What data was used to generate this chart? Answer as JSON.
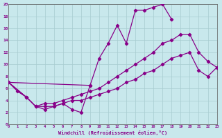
{
  "background_color": "#c8e8ec",
  "grid_color": "#a8ccd0",
  "line_color": "#880088",
  "xlabel": "Windchill (Refroidissement éolien,°C)",
  "xlim": [
    0,
    23
  ],
  "ylim": [
    0,
    20
  ],
  "curve_upper_x": [
    0,
    9,
    10,
    11,
    12,
    13,
    14,
    15,
    16,
    17,
    18
  ],
  "curve_upper_y": [
    7,
    6.5,
    11,
    13.5,
    16.5,
    13.5,
    19.0,
    19.0,
    19.5,
    20.0,
    17.5
  ],
  "curve_lower_x": [
    0,
    1,
    2,
    3,
    4,
    5,
    6,
    7,
    8,
    9
  ],
  "curve_lower_y": [
    7,
    5.5,
    4.5,
    3.0,
    2.5,
    3.0,
    3.5,
    2.5,
    2.0,
    6.5
  ],
  "curve_diag_up_x": [
    0,
    2,
    3,
    4,
    5,
    6,
    7,
    8,
    9,
    10,
    11,
    12,
    13,
    14,
    15,
    16,
    17,
    18,
    19,
    20,
    21,
    22,
    23
  ],
  "curve_diag_up_y": [
    7,
    4.5,
    3.0,
    3.5,
    3.5,
    4.0,
    4.5,
    5.0,
    5.5,
    6.0,
    7.0,
    8.0,
    9.0,
    10.0,
    11.0,
    12.0,
    13.5,
    14.0,
    15.0,
    15.0,
    12.0,
    10.5,
    9.5
  ],
  "curve_diag_low_x": [
    0,
    2,
    3,
    4,
    5,
    6,
    7,
    8,
    9,
    10,
    11,
    12,
    13,
    14,
    15,
    16,
    17,
    18,
    19,
    20,
    21,
    22,
    23
  ],
  "curve_diag_low_y": [
    7,
    4.5,
    3.0,
    3.0,
    3.0,
    3.5,
    4.0,
    4.0,
    4.5,
    5.0,
    5.5,
    6.0,
    7.0,
    7.5,
    8.5,
    9.0,
    10.0,
    11.0,
    11.5,
    12.0,
    9.0,
    8.0,
    9.5
  ]
}
